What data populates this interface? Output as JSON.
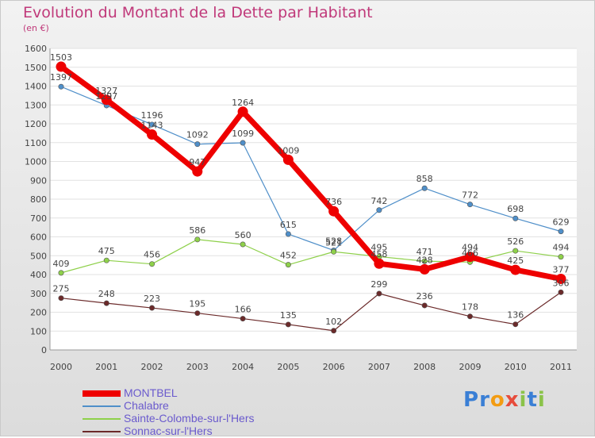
{
  "title": "Evolution du Montant de la Dette par Habitant",
  "unit_label": "(en €)",
  "brand": {
    "letters": [
      "P",
      "r",
      "o",
      "x",
      "i",
      "t",
      "i"
    ],
    "colors": [
      "#3a7fd5",
      "#3a7fd5",
      "#f39c12",
      "#e74c3c",
      "#8bc34a",
      "#3a7fd5",
      "#8bc34a"
    ]
  },
  "chart_data": {
    "type": "line",
    "title": "Evolution du Montant de la Dette par Habitant",
    "ylabel": "(en €)",
    "xlabel": "",
    "ylim": [
      0,
      1600
    ],
    "yticks": [
      0,
      100,
      200,
      300,
      400,
      500,
      600,
      700,
      800,
      900,
      1000,
      1100,
      1200,
      1300,
      1400,
      1500,
      1600
    ],
    "x": [
      "2000",
      "2001",
      "2002",
      "2003",
      "2004",
      "2005",
      "2006",
      "2007",
      "2008",
      "2009",
      "2010",
      "2011"
    ],
    "legend_position": "bottom",
    "grid": "horizontal",
    "series": [
      {
        "name": "MONTBEL",
        "color": "#ee0000",
        "values": [
          1503,
          1327,
          1143,
          947,
          1264,
          1009,
          736,
          458,
          428,
          494,
          425,
          377
        ]
      },
      {
        "name": "Chalabre",
        "color": "#4f8fc9",
        "values": [
          1397,
          1297,
          1196,
          1092,
          1099,
          615,
          528,
          742,
          858,
          772,
          698,
          629
        ]
      },
      {
        "name": "Sainte-Colombe-sur-l'Hers",
        "color": "#8ed04a",
        "values": [
          409,
          475,
          456,
          586,
          560,
          452,
          521,
          495,
          471,
          466,
          526,
          494
        ]
      },
      {
        "name": "Sonnac-sur-l'Hers",
        "color": "#6b2a2a",
        "values": [
          275,
          248,
          223,
          195,
          166,
          135,
          102,
          299,
          236,
          178,
          136,
          306
        ]
      }
    ]
  }
}
